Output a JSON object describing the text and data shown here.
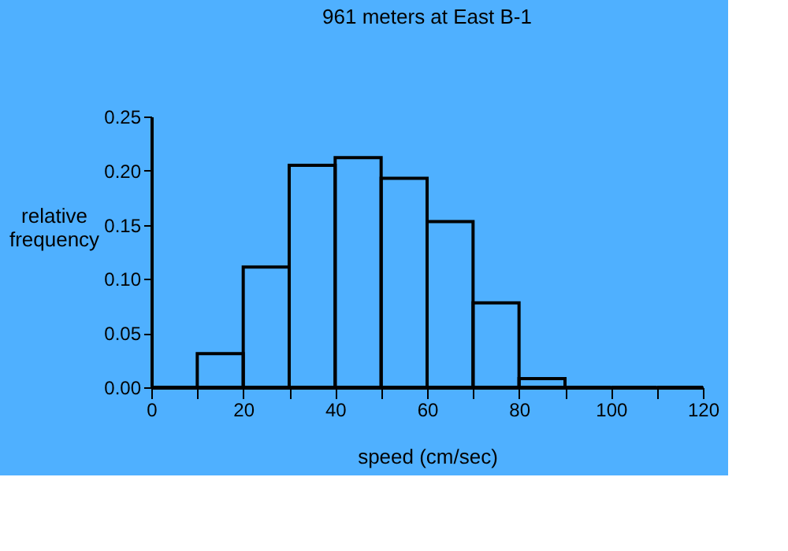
{
  "chart_data": {
    "type": "histogram",
    "title": "961 meters at East B-1",
    "xlabel": "speed (cm/sec)",
    "ylabel": "relative\nfrequency",
    "bins": [
      0,
      10,
      20,
      30,
      40,
      50,
      60,
      70,
      80,
      90,
      100,
      110,
      120
    ],
    "values": [
      0,
      0.031,
      0.111,
      0.205,
      0.212,
      0.193,
      0.153,
      0.078,
      0.008,
      0,
      0,
      0
    ],
    "color": "#000000",
    "xlim": [
      0,
      120
    ],
    "xticks": [
      0,
      {
        "value": 10,
        "label": null
      },
      20,
      {
        "value": 30,
        "label": null
      },
      40,
      {
        "value": 50,
        "label": null
      },
      60,
      {
        "value": 70,
        "label": null
      },
      80,
      {
        "value": 90,
        "label": null
      },
      100,
      {
        "value": 110,
        "label": null
      },
      120
    ],
    "ylim": [
      0,
      0.25
    ],
    "yticks": [
      {
        "value": 0,
        "label": "0.00"
      },
      {
        "value": 0.05,
        "label": "0.05"
      },
      {
        "value": 0.1,
        "label": "0.10"
      },
      {
        "value": 0.15,
        "label": "0.15"
      },
      {
        "value": 0.2,
        "label": "0.20"
      },
      {
        "value": 0.25,
        "label": "0.25"
      }
    ],
    "grid": false
  }
}
